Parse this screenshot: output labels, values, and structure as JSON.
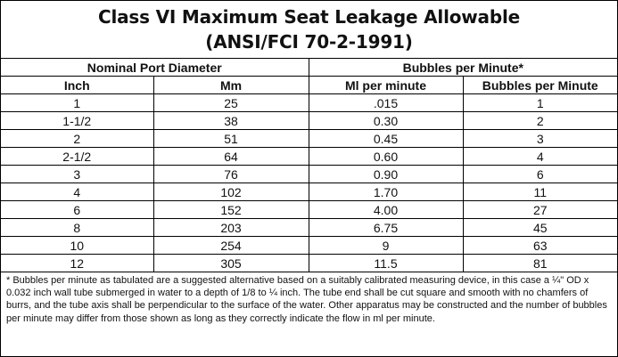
{
  "title": {
    "line1": "Class VI Maximum Seat Leakage Allowable",
    "line2": "(ANSI/FCI 70-2-1991)"
  },
  "group_headers": {
    "port": "Nominal Port Diameter",
    "bubbles": "Bubbles per Minute*"
  },
  "column_headers": [
    "Inch",
    "Mm",
    "Ml per minute",
    "Bubbles per Minute"
  ],
  "rows": [
    [
      "1",
      "25",
      ".015",
      "1"
    ],
    [
      "1-1/2",
      "38",
      "0.30",
      "2"
    ],
    [
      "2",
      "51",
      "0.45",
      "3"
    ],
    [
      "2-1/2",
      "64",
      "0.60",
      "4"
    ],
    [
      "3",
      "76",
      "0.90",
      "6"
    ],
    [
      "4",
      "102",
      "1.70",
      "11"
    ],
    [
      "6",
      "152",
      "4.00",
      "27"
    ],
    [
      "8",
      "203",
      "6.75",
      "45"
    ],
    [
      "10",
      "254",
      "9",
      "63"
    ],
    [
      "12",
      "305",
      "11.5",
      "81"
    ]
  ],
  "footnote": "* Bubbles per minute as tabulated are a suggested alternative based on a suitably calibrated measuring device, in this case a ¼\" OD x 0.032 inch wall tube submerged in water to a depth of 1/8 to ¼ inch. The tube end shall be cut square and smooth with no chamfers of burrs, and the tube axis shall be perpendicular to the surface of the water. Other apparatus may be constructed and the number of bubbles per minute may differ from those shown as long as they correctly indicate the flow in ml per minute."
}
